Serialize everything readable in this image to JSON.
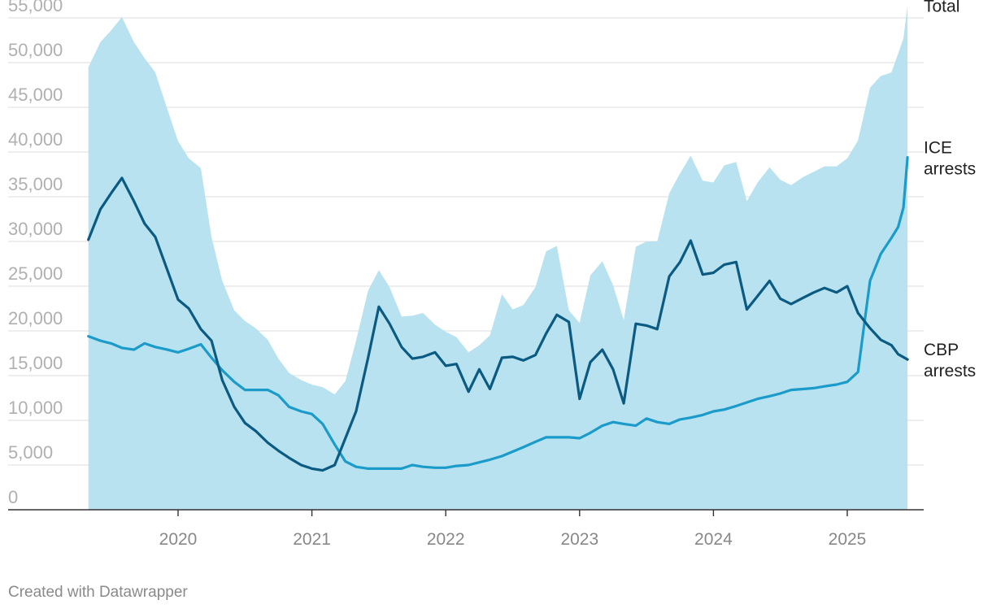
{
  "chart_data": {
    "type": "area",
    "title": "",
    "xlabel": "",
    "ylabel": "",
    "ylim": [
      0,
      55000
    ],
    "xlim": [
      2019.35,
      2025.55
    ],
    "y_ticks": [
      0,
      5000,
      10000,
      15000,
      20000,
      25000,
      30000,
      35000,
      40000,
      45000,
      50000,
      55000
    ],
    "y_tick_labels": [
      "0",
      "5,000",
      "10,000",
      "15,000",
      "20,000",
      "25,000",
      "30,000",
      "35,000",
      "40,000",
      "45,000",
      "50,000",
      "55,000"
    ],
    "x_ticks": [
      2020,
      2021,
      2022,
      2023,
      2024,
      2025
    ],
    "x_tick_labels": [
      "2020",
      "2021",
      "2022",
      "2023",
      "2024",
      "2025"
    ],
    "grid": true,
    "series": [
      {
        "name": "Total",
        "label": "Total",
        "kind": "area",
        "color": "#b9e2f0",
        "points": [
          [
            2019.33,
            49500
          ],
          [
            2019.42,
            52300
          ],
          [
            2019.5,
            53600
          ],
          [
            2019.58,
            55100
          ],
          [
            2019.67,
            52300
          ],
          [
            2019.75,
            50500
          ],
          [
            2019.83,
            48900
          ],
          [
            2019.92,
            44800
          ],
          [
            2020.0,
            41200
          ],
          [
            2020.08,
            39300
          ],
          [
            2020.17,
            38200
          ],
          [
            2020.25,
            30500
          ],
          [
            2020.33,
            25600
          ],
          [
            2020.42,
            22300
          ],
          [
            2020.5,
            21100
          ],
          [
            2020.58,
            20300
          ],
          [
            2020.67,
            19000
          ],
          [
            2020.75,
            16900
          ],
          [
            2020.83,
            15300
          ],
          [
            2020.92,
            14500
          ],
          [
            2021.0,
            14000
          ],
          [
            2021.08,
            13700
          ],
          [
            2021.17,
            12900
          ],
          [
            2021.25,
            14400
          ],
          [
            2021.33,
            18900
          ],
          [
            2021.42,
            24500
          ],
          [
            2021.5,
            26800
          ],
          [
            2021.58,
            24900
          ],
          [
            2021.67,
            21600
          ],
          [
            2021.75,
            21700
          ],
          [
            2021.83,
            22000
          ],
          [
            2021.92,
            20700
          ],
          [
            2022.0,
            19900
          ],
          [
            2022.08,
            19300
          ],
          [
            2022.17,
            17600
          ],
          [
            2022.25,
            18400
          ],
          [
            2022.33,
            19500
          ],
          [
            2022.42,
            24100
          ],
          [
            2022.5,
            22400
          ],
          [
            2022.58,
            22900
          ],
          [
            2022.67,
            24900
          ],
          [
            2022.75,
            28900
          ],
          [
            2022.83,
            29500
          ],
          [
            2022.92,
            22300
          ],
          [
            2023.0,
            20900
          ],
          [
            2023.08,
            26200
          ],
          [
            2023.17,
            27800
          ],
          [
            2023.25,
            25100
          ],
          [
            2023.33,
            21200
          ],
          [
            2023.42,
            29400
          ],
          [
            2023.5,
            30000
          ],
          [
            2023.58,
            30000
          ],
          [
            2023.67,
            35400
          ],
          [
            2023.75,
            37600
          ],
          [
            2023.83,
            39600
          ],
          [
            2023.92,
            36800
          ],
          [
            2024.0,
            36600
          ],
          [
            2024.08,
            38500
          ],
          [
            2024.17,
            38900
          ],
          [
            2024.25,
            34500
          ],
          [
            2024.33,
            36600
          ],
          [
            2024.42,
            38300
          ],
          [
            2024.5,
            36900
          ],
          [
            2024.58,
            36300
          ],
          [
            2024.67,
            37200
          ],
          [
            2024.75,
            37800
          ],
          [
            2024.83,
            38400
          ],
          [
            2024.92,
            38400
          ],
          [
            2025.0,
            39300
          ],
          [
            2025.08,
            41300
          ],
          [
            2025.17,
            47200
          ],
          [
            2025.25,
            48500
          ],
          [
            2025.33,
            48900
          ],
          [
            2025.42,
            52700
          ],
          [
            2025.45,
            56400
          ]
        ]
      },
      {
        "name": "ICE arrests",
        "label": "ICE\narrests",
        "kind": "line",
        "color": "#1a9bca",
        "points": [
          [
            2019.33,
            19400
          ],
          [
            2019.42,
            18900
          ],
          [
            2019.5,
            18600
          ],
          [
            2019.58,
            18100
          ],
          [
            2019.67,
            17900
          ],
          [
            2019.75,
            18600
          ],
          [
            2019.83,
            18200
          ],
          [
            2019.92,
            17900
          ],
          [
            2020.0,
            17600
          ],
          [
            2020.08,
            18000
          ],
          [
            2020.17,
            18500
          ],
          [
            2020.25,
            17000
          ],
          [
            2020.33,
            15600
          ],
          [
            2020.42,
            14300
          ],
          [
            2020.5,
            13400
          ],
          [
            2020.58,
            13400
          ],
          [
            2020.67,
            13400
          ],
          [
            2020.75,
            12800
          ],
          [
            2020.83,
            11500
          ],
          [
            2020.92,
            11000
          ],
          [
            2021.0,
            10700
          ],
          [
            2021.08,
            9600
          ],
          [
            2021.17,
            7300
          ],
          [
            2021.25,
            5400
          ],
          [
            2021.33,
            4800
          ],
          [
            2021.42,
            4600
          ],
          [
            2021.5,
            4600
          ],
          [
            2021.58,
            4600
          ],
          [
            2021.67,
            4600
          ],
          [
            2021.75,
            5000
          ],
          [
            2021.83,
            4800
          ],
          [
            2021.92,
            4700
          ],
          [
            2022.0,
            4700
          ],
          [
            2022.08,
            4900
          ],
          [
            2022.17,
            5000
          ],
          [
            2022.25,
            5300
          ],
          [
            2022.33,
            5600
          ],
          [
            2022.42,
            6000
          ],
          [
            2022.5,
            6500
          ],
          [
            2022.58,
            7000
          ],
          [
            2022.67,
            7600
          ],
          [
            2022.75,
            8100
          ],
          [
            2022.83,
            8100
          ],
          [
            2022.92,
            8100
          ],
          [
            2023.0,
            8000
          ],
          [
            2023.08,
            8600
          ],
          [
            2023.17,
            9400
          ],
          [
            2023.25,
            9800
          ],
          [
            2023.33,
            9600
          ],
          [
            2023.42,
            9400
          ],
          [
            2023.5,
            10200
          ],
          [
            2023.58,
            9800
          ],
          [
            2023.67,
            9600
          ],
          [
            2023.75,
            10100
          ],
          [
            2023.83,
            10300
          ],
          [
            2023.92,
            10600
          ],
          [
            2024.0,
            11000
          ],
          [
            2024.08,
            11200
          ],
          [
            2024.17,
            11600
          ],
          [
            2024.25,
            12000
          ],
          [
            2024.33,
            12400
          ],
          [
            2024.42,
            12700
          ],
          [
            2024.5,
            13000
          ],
          [
            2024.58,
            13400
          ],
          [
            2024.67,
            13500
          ],
          [
            2024.75,
            13600
          ],
          [
            2024.83,
            13800
          ],
          [
            2024.92,
            14000
          ],
          [
            2025.0,
            14300
          ],
          [
            2025.08,
            15400
          ],
          [
            2025.12,
            20000
          ],
          [
            2025.17,
            25600
          ],
          [
            2025.25,
            28600
          ],
          [
            2025.33,
            30400
          ],
          [
            2025.38,
            31600
          ],
          [
            2025.42,
            33800
          ],
          [
            2025.45,
            39400
          ]
        ]
      },
      {
        "name": "CBP arrests",
        "label": "CBP\narrests",
        "kind": "line",
        "color": "#0a5a82",
        "points": [
          [
            2019.33,
            30200
          ],
          [
            2019.42,
            33600
          ],
          [
            2019.5,
            35400
          ],
          [
            2019.58,
            37100
          ],
          [
            2019.67,
            34500
          ],
          [
            2019.75,
            32000
          ],
          [
            2019.83,
            30500
          ],
          [
            2019.92,
            26800
          ],
          [
            2020.0,
            23500
          ],
          [
            2020.08,
            22500
          ],
          [
            2020.17,
            20200
          ],
          [
            2020.25,
            18900
          ],
          [
            2020.33,
            14500
          ],
          [
            2020.42,
            11500
          ],
          [
            2020.5,
            9700
          ],
          [
            2020.58,
            8800
          ],
          [
            2020.67,
            7500
          ],
          [
            2020.75,
            6600
          ],
          [
            2020.83,
            5800
          ],
          [
            2020.92,
            5000
          ],
          [
            2021.0,
            4600
          ],
          [
            2021.08,
            4400
          ],
          [
            2021.17,
            5000
          ],
          [
            2021.25,
            8000
          ],
          [
            2021.33,
            11000
          ],
          [
            2021.42,
            17000
          ],
          [
            2021.5,
            22700
          ],
          [
            2021.58,
            20800
          ],
          [
            2021.67,
            18200
          ],
          [
            2021.75,
            16900
          ],
          [
            2021.83,
            17100
          ],
          [
            2021.92,
            17600
          ],
          [
            2022.0,
            16100
          ],
          [
            2022.08,
            16300
          ],
          [
            2022.17,
            13200
          ],
          [
            2022.25,
            15700
          ],
          [
            2022.33,
            13500
          ],
          [
            2022.42,
            17000
          ],
          [
            2022.5,
            17100
          ],
          [
            2022.58,
            16700
          ],
          [
            2022.67,
            17300
          ],
          [
            2022.75,
            19700
          ],
          [
            2022.83,
            21800
          ],
          [
            2022.92,
            21000
          ],
          [
            2023.0,
            12400
          ],
          [
            2023.08,
            16500
          ],
          [
            2023.17,
            17900
          ],
          [
            2023.25,
            15700
          ],
          [
            2023.33,
            11900
          ],
          [
            2023.42,
            20800
          ],
          [
            2023.5,
            20600
          ],
          [
            2023.58,
            20200
          ],
          [
            2023.67,
            26100
          ],
          [
            2023.75,
            27700
          ],
          [
            2023.83,
            30100
          ],
          [
            2023.92,
            26300
          ],
          [
            2024.0,
            26500
          ],
          [
            2024.08,
            27400
          ],
          [
            2024.17,
            27700
          ],
          [
            2024.25,
            22400
          ],
          [
            2024.33,
            23900
          ],
          [
            2024.42,
            25600
          ],
          [
            2024.5,
            23600
          ],
          [
            2024.58,
            23000
          ],
          [
            2024.67,
            23700
          ],
          [
            2024.75,
            24300
          ],
          [
            2024.83,
            24800
          ],
          [
            2024.92,
            24300
          ],
          [
            2025.0,
            25000
          ],
          [
            2025.08,
            22000
          ],
          [
            2025.17,
            20300
          ],
          [
            2025.25,
            19000
          ],
          [
            2025.33,
            18400
          ],
          [
            2025.38,
            17400
          ],
          [
            2025.45,
            16800
          ]
        ]
      }
    ]
  },
  "footer": {
    "credit": "Created with Datawrapper"
  }
}
